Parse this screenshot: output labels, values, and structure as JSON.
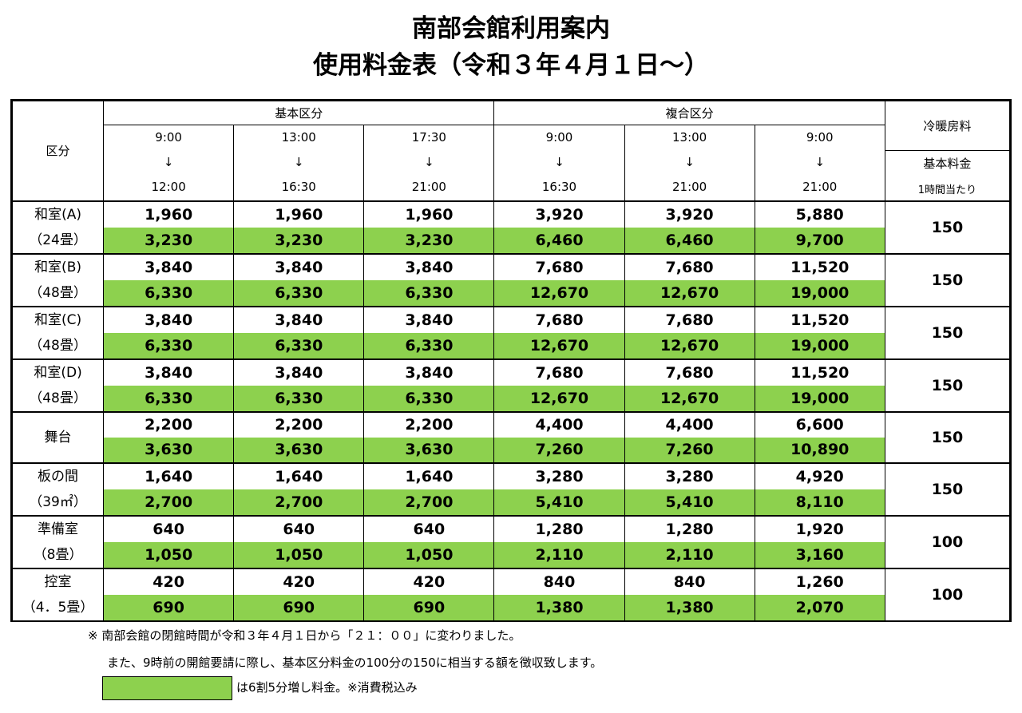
{
  "title_line1": "南部会館利用案内",
  "title_line2": "使用料金表（令和３年４月１日～）",
  "header": {
    "category": "区分",
    "basic": "基本区分",
    "combined": "複合区分",
    "ac": "冷暖房料",
    "ac_base": "基本料金",
    "ac_unit": "1時間当たり",
    "times": [
      {
        "start": "9:00",
        "arrow": "↓",
        "end": "12:00"
      },
      {
        "start": "13:00",
        "arrow": "↓",
        "end": "16:30"
      },
      {
        "start": "17:30",
        "arrow": "↓",
        "end": "21:00"
      },
      {
        "start": "9:00",
        "arrow": "↓",
        "end": "16:30"
      },
      {
        "start": "13:00",
        "arrow": "↓",
        "end": "21:00"
      },
      {
        "start": "9:00",
        "arrow": "↓",
        "end": "21:00"
      }
    ]
  },
  "rows": [
    {
      "name1": "和室(A)",
      "name2": "（24畳）",
      "base": [
        "1,960",
        "1,960",
        "1,960",
        "3,920",
        "3,920",
        "5,880"
      ],
      "surcharge": [
        "3,230",
        "3,230",
        "3,230",
        "6,460",
        "6,460",
        "9,700"
      ],
      "ac": "150"
    },
    {
      "name1": "和室(B)",
      "name2": "（48畳）",
      "base": [
        "3,840",
        "3,840",
        "3,840",
        "7,680",
        "7,680",
        "11,520"
      ],
      "surcharge": [
        "6,330",
        "6,330",
        "6,330",
        "12,670",
        "12,670",
        "19,000"
      ],
      "ac": "150"
    },
    {
      "name1": "和室(C)",
      "name2": "（48畳）",
      "base": [
        "3,840",
        "3,840",
        "3,840",
        "7,680",
        "7,680",
        "11,520"
      ],
      "surcharge": [
        "6,330",
        "6,330",
        "6,330",
        "12,670",
        "12,670",
        "19,000"
      ],
      "ac": "150"
    },
    {
      "name1": "和室(D)",
      "name2": "（48畳）",
      "base": [
        "3,840",
        "3,840",
        "3,840",
        "7,680",
        "7,680",
        "11,520"
      ],
      "surcharge": [
        "6,330",
        "6,330",
        "6,330",
        "12,670",
        "12,670",
        "19,000"
      ],
      "ac": "150"
    },
    {
      "name1": "舞台",
      "name2": "",
      "base": [
        "2,200",
        "2,200",
        "2,200",
        "4,400",
        "4,400",
        "6,600"
      ],
      "surcharge": [
        "3,630",
        "3,630",
        "3,630",
        "7,260",
        "7,260",
        "10,890"
      ],
      "ac": "150"
    },
    {
      "name1": "板の間",
      "name2": "（39㎡）",
      "base": [
        "1,640",
        "1,640",
        "1,640",
        "3,280",
        "3,280",
        "4,920"
      ],
      "surcharge": [
        "2,700",
        "2,700",
        "2,700",
        "5,410",
        "5,410",
        "8,110"
      ],
      "ac": "150"
    },
    {
      "name1": "準備室",
      "name2": "（8畳）",
      "base": [
        "640",
        "640",
        "640",
        "1,280",
        "1,280",
        "1,920"
      ],
      "surcharge": [
        "1,050",
        "1,050",
        "1,050",
        "2,110",
        "2,110",
        "3,160"
      ],
      "ac": "100"
    },
    {
      "name1": "控室",
      "name2": "（4．5畳）",
      "base": [
        "420",
        "420",
        "420",
        "840",
        "840",
        "1,260"
      ],
      "surcharge": [
        "690",
        "690",
        "690",
        "1,380",
        "1,380",
        "2,070"
      ],
      "ac": "100"
    }
  ],
  "notes": {
    "line1": "※ 南部会館の閉館時間が令和３年４月１日から「２１：００」に変わりました。",
    "line2": "また、9時前の開館要請に際し、基本区分料金の100分の150に相当する額を徴収致します。",
    "legend": "は6割5分増し料金。※消費税込み"
  },
  "colors": {
    "surcharge_fill": "#8dd14e"
  }
}
